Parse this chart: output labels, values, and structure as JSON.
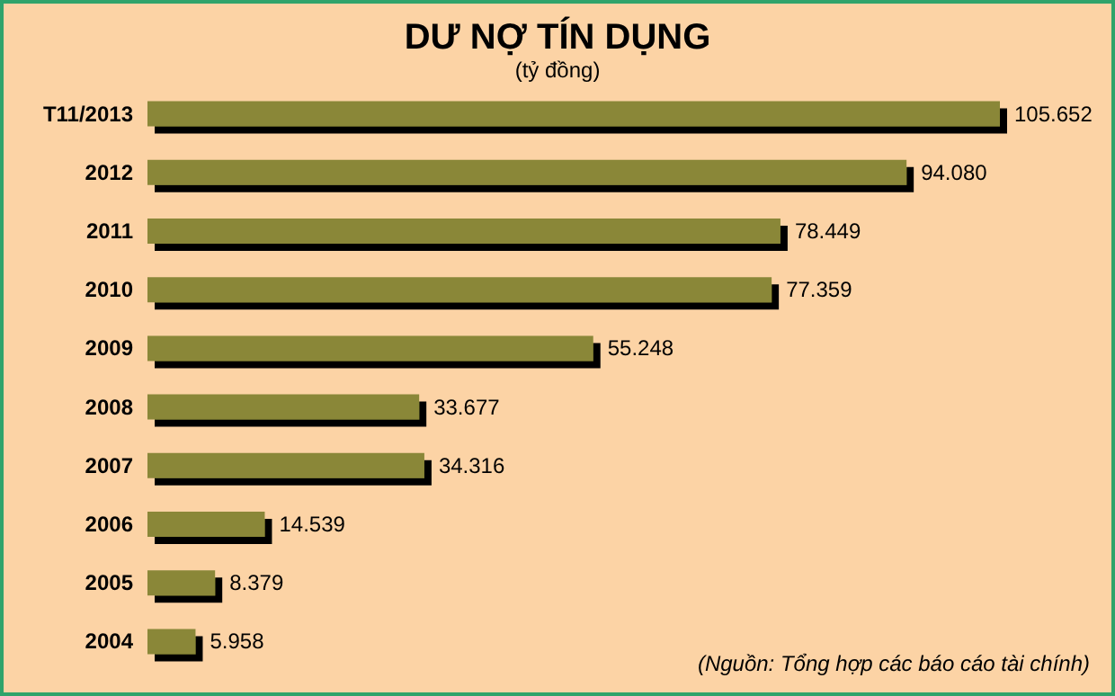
{
  "chart_data": {
    "type": "bar",
    "orientation": "horizontal",
    "title": "DƯ NỢ TÍN DỤNG",
    "subtitle": "(tỷ đồng)",
    "categories": [
      "T11/2013",
      "2012",
      "2011",
      "2010",
      "2009",
      "2008",
      "2007",
      "2006",
      "2005",
      "2004"
    ],
    "values": [
      105652,
      94080,
      78449,
      77359,
      55248,
      33677,
      34316,
      14539,
      8379,
      5958
    ],
    "value_labels": [
      "105.652",
      "94.080",
      "78.449",
      "77.359",
      "55.248",
      "33.677",
      "34.316",
      "14.539",
      "8.379",
      "5.958"
    ],
    "color": "#8a8739",
    "annotations": [
      "(Nguồn: Tổng hợp các báo cáo tài chính)"
    ]
  }
}
